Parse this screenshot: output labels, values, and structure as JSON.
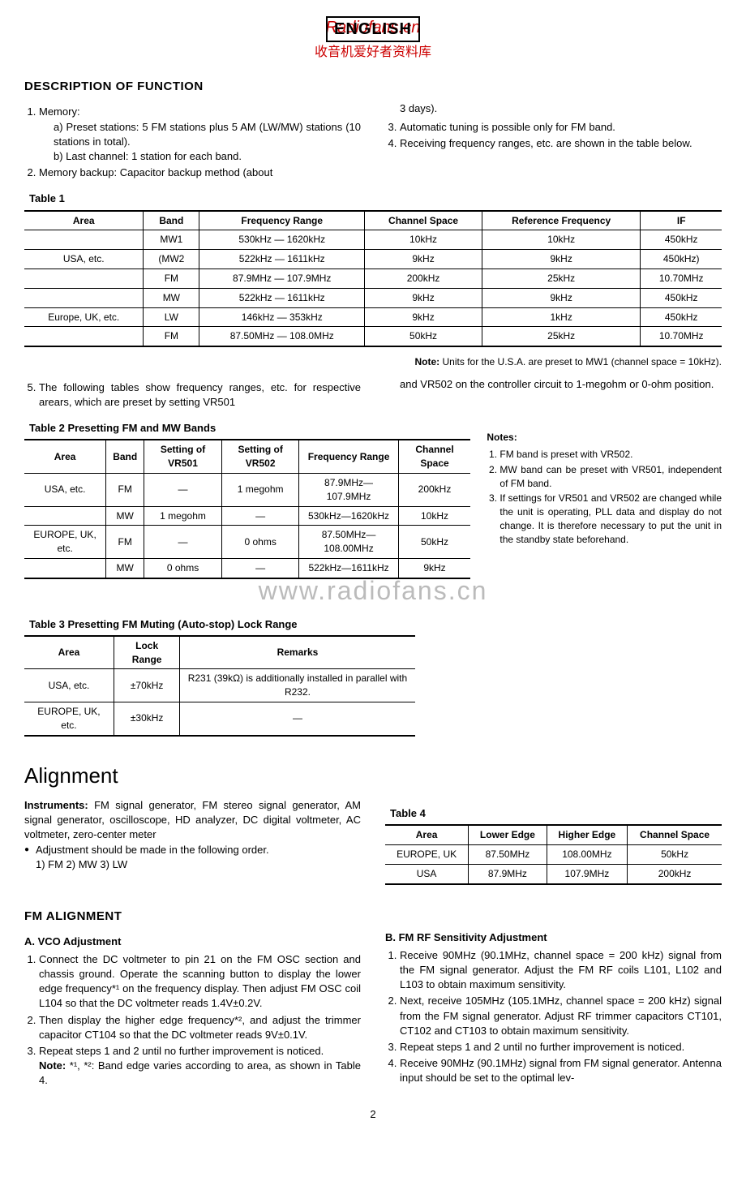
{
  "header": {
    "english": "ENGLISH",
    "red1": "Radiofans.cn",
    "red2": "收音机爱好者资料库"
  },
  "desc_title": "DESCRIPTION OF FUNCTION",
  "desc_col1": {
    "i1": "Memory:",
    "i1a": "a)  Preset stations: 5 FM stations plus 5 AM (LW/MW) stations (10 stations in total).",
    "i1b": "b)  Last channel: 1 station for each band.",
    "i2": "Memory backup: Capacitor backup method (about"
  },
  "desc_col2": {
    "cont": "3 days).",
    "i3": "Automatic tuning is possible only for FM band.",
    "i4": "Receiving frequency ranges, etc. are shown in the table below."
  },
  "table1": {
    "caption": "Table 1",
    "columns": [
      "Area",
      "Band",
      "Frequency Range",
      "Channel Space",
      "Reference Frequency",
      "IF"
    ],
    "rows": [
      [
        "",
        "MW1",
        "530kHz — 1620kHz",
        "10kHz",
        "10kHz",
        "450kHz"
      ],
      [
        "USA, etc.",
        "(MW2",
        "522kHz — 1611kHz",
        "9kHz",
        "9kHz",
        "450kHz)"
      ],
      [
        "",
        "FM",
        "87.9MHz — 107.9MHz",
        "200kHz",
        "25kHz",
        "10.70MHz"
      ],
      [
        "",
        "MW",
        "522kHz — 1611kHz",
        "9kHz",
        "9kHz",
        "450kHz"
      ],
      [
        "Europe, UK, etc.",
        "LW",
        "146kHz — 353kHz",
        "9kHz",
        "1kHz",
        "450kHz"
      ],
      [
        "",
        "FM",
        "87.50MHz — 108.0MHz",
        "50kHz",
        "25kHz",
        "10.70MHz"
      ]
    ],
    "note": "Units for the U.S.A. are preset to MW1 (channel space = 10kHz)."
  },
  "item5": {
    "left": "The following tables show frequency ranges, etc. for respective arears, which are preset by setting VR501",
    "right": "and VR502 on the controller circuit to 1-megohm or 0-ohm position."
  },
  "table2": {
    "caption": "Table 2      Presetting FM and MW Bands",
    "columns": [
      "Area",
      "Band",
      "Setting of VR501",
      "Setting of VR502",
      "Frequency Range",
      "Channel Space"
    ],
    "rows": [
      [
        "USA, etc.",
        "FM",
        "—",
        "1 megohm",
        "87.9MHz—107.9MHz",
        "200kHz"
      ],
      [
        "",
        "MW",
        "1 megohm",
        "—",
        "530kHz—1620kHz",
        "10kHz"
      ],
      [
        "EUROPE, UK, etc.",
        "FM",
        "—",
        "0 ohms",
        "87.50MHz—108.00MHz",
        "50kHz"
      ],
      [
        "",
        "MW",
        "0 ohms",
        "—",
        "522kHz—1611kHz",
        "9kHz"
      ]
    ]
  },
  "notes2": {
    "title": "Notes:",
    "n1": "FM band is preset with VR502.",
    "n2": "MW band can be preset with VR501, independent of FM band.",
    "n3": "If settings for VR501 and VR502 are changed while the unit is operating, PLL data and display do not change. It is therefore necessary to put the unit in the standby state beforehand."
  },
  "watermark": "www.radiofans.cn",
  "table3": {
    "caption": "Table 3      Presetting FM Muting (Auto-stop) Lock Range",
    "columns": [
      "Area",
      "Lock Range",
      "Remarks"
    ],
    "rows": [
      [
        "USA, etc.",
        "±70kHz",
        "R231 (39kΩ) is additionally installed in parallel with R232."
      ],
      [
        "EUROPE, UK, etc.",
        "±30kHz",
        "—"
      ]
    ]
  },
  "alignment": {
    "title": "Alignment",
    "instruments_label": "Instruments:",
    "instruments": " FM signal generator, FM stereo signal generator, AM signal generator, oscilloscope, HD analyzer, DC digital voltmeter, AC voltmeter, zero-center meter",
    "bullet": "Adjustment should be made in the following order.",
    "order": "1) FM  2) MW  3) LW"
  },
  "table4": {
    "caption": "Table 4",
    "columns": [
      "Area",
      "Lower Edge",
      "Higher Edge",
      "Channel Space"
    ],
    "rows": [
      [
        "EUROPE, UK",
        "87.50MHz",
        "108.00MHz",
        "50kHz"
      ],
      [
        "USA",
        "87.9MHz",
        "107.9MHz",
        "200kHz"
      ]
    ]
  },
  "fm_align_title": "FM ALIGNMENT",
  "sectionA": {
    "title": "A.   VCO Adjustment",
    "s1": "Connect the DC voltmeter to pin 21 on the FM OSC section and chassis ground. Operate the scanning button to display the lower edge frequency*¹ on the frequency display. Then adjust FM OSC coil L104 so that the DC voltmeter reads 1.4V±0.2V.",
    "s2": "Then display the higher edge frequency*², and adjust the trimmer capacitor CT104 so that the DC voltmeter reads 9V±0.1V.",
    "s3": "Repeat steps 1 and 2 until no further improvement is noticed.",
    "note_label": "Note:",
    "note": " *¹, *²: Band edge varies according to area, as shown in Table 4."
  },
  "sectionB": {
    "title": "B.   FM RF Sensitivity Adjustment",
    "s1": "Receive 90MHz (90.1MHz, channel space = 200 kHz) signal from the FM signal generator. Adjust the FM RF coils L101, L102 and L103 to obtain maximum sensitivity.",
    "s2": "Next, receive 105MHz (105.1MHz, channel space = 200 kHz) signal from the FM signal generator. Adjust RF trimmer capacitors CT101, CT102 and CT103 to obtain maximum sensitivity.",
    "s3": "Repeat steps 1 and 2 until no further improvement is noticed.",
    "s4": "Receive 90MHz (90.1MHz) signal from FM signal generator. Antenna input should be set to the optimal lev-"
  },
  "pagenum": "2"
}
